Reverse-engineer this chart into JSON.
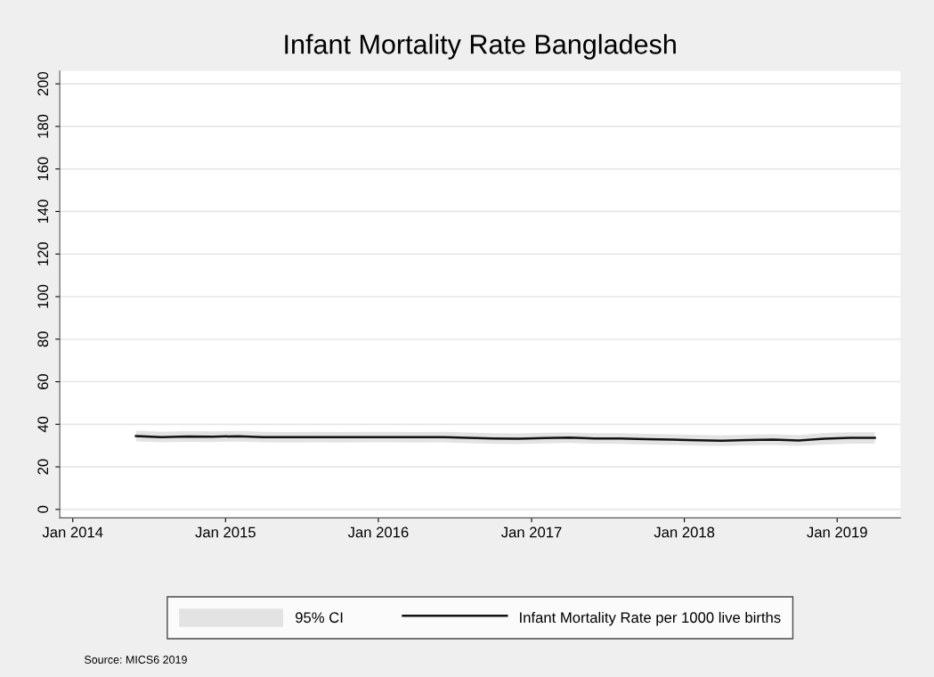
{
  "chart_data": {
    "type": "line",
    "title": "Infant Mortality Rate Bangladesh",
    "x": [
      "2014-06",
      "2014-08",
      "2014-10",
      "2014-12",
      "2015-02",
      "2015-04",
      "2015-06",
      "2015-08",
      "2015-10",
      "2015-12",
      "2016-02",
      "2016-04",
      "2016-06",
      "2016-08",
      "2016-10",
      "2016-12",
      "2017-02",
      "2017-04",
      "2017-06",
      "2017-08",
      "2017-10",
      "2017-12",
      "2018-02",
      "2018-04",
      "2018-06",
      "2018-08",
      "2018-10",
      "2018-12",
      "2019-02",
      "2019-04"
    ],
    "series": [
      {
        "name": "Infant Mortality Rate per 1000 live births",
        "color": "#111111",
        "values": [
          34.5,
          34,
          34.3,
          34.2,
          34.4,
          34,
          33.9,
          34,
          33.9,
          34,
          34,
          33.9,
          34,
          33.6,
          33.3,
          33.2,
          33.5,
          33.7,
          33.3,
          33.3,
          33,
          32.8,
          32.5,
          32.3,
          32.6,
          32.8,
          32.4,
          33.2,
          33.6,
          33.6
        ],
        "lower": [
          32,
          31.5,
          31.8,
          31.7,
          31.9,
          31.5,
          31.4,
          31.5,
          31.4,
          31.5,
          31.5,
          31.4,
          31.5,
          31.1,
          30.8,
          30.7,
          31,
          31.2,
          30.8,
          30.8,
          30.5,
          30.3,
          30,
          29.8,
          30.1,
          30.3,
          29.9,
          30.5,
          30.9,
          30.9
        ],
        "upper": [
          37,
          36.5,
          36.8,
          36.7,
          36.9,
          36.5,
          36.4,
          36.5,
          36.4,
          36.5,
          36.5,
          36.4,
          36.5,
          36.1,
          35.8,
          35.7,
          36,
          36.2,
          35.8,
          35.8,
          35.5,
          35.3,
          35,
          34.8,
          35.1,
          35.3,
          34.9,
          35.9,
          36.3,
          36.3
        ]
      }
    ],
    "xlim": [
      "2013-12",
      "2019-06"
    ],
    "xticks": [
      {
        "value": "2014-01",
        "label": "Jan 2014"
      },
      {
        "value": "2015-01",
        "label": "Jan 2015"
      },
      {
        "value": "2016-01",
        "label": "Jan 2016"
      },
      {
        "value": "2017-01",
        "label": "Jan 2017"
      },
      {
        "value": "2018-01",
        "label": "Jan 2018"
      },
      {
        "value": "2019-01",
        "label": "Jan 2019"
      }
    ],
    "ylim": [
      -4,
      206
    ],
    "yticks": [
      0,
      20,
      40,
      60,
      80,
      100,
      120,
      140,
      160,
      180,
      200
    ],
    "grid": "y",
    "legend": "bottom",
    "annotations": [
      "95% CI",
      "Source: MICS6 2019"
    ]
  }
}
